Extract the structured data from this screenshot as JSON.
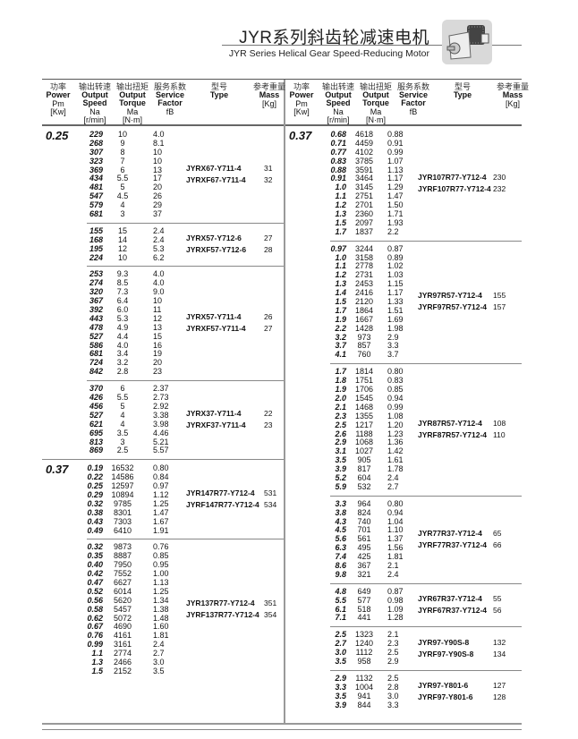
{
  "header": {
    "title": "JYR系列斜齿轮减速电机",
    "subtitle": "JYR Series Helical Gear Speed-Reducing Motor",
    "image": "gear-motor-photo"
  },
  "columns": [
    {
      "zh": "功率",
      "en1": "Power",
      "en2": "",
      "sym": "Pm",
      "unit": "[Kw]"
    },
    {
      "zh": "输出转速",
      "en1": "Output",
      "en2": "Speed",
      "sym": "Na",
      "unit": "[r/min]"
    },
    {
      "zh": "输出扭矩",
      "en1": "Output",
      "en2": "Torque",
      "sym": "Ma",
      "unit": "[N·m]"
    },
    {
      "zh": "服务系数",
      "en1": "Service",
      "en2": "Factor",
      "sym": "fB",
      "unit": ""
    },
    {
      "zh": "型号",
      "en1": "",
      "en2": "Type",
      "sym": "",
      "unit": ""
    },
    {
      "zh": "参考重量",
      "en1": "",
      "en2": "Mass",
      "sym": "",
      "unit": "[Kg]"
    }
  ],
  "left": [
    {
      "power": "0.25",
      "rows": [
        [
          "229",
          "10",
          "4.0"
        ],
        [
          "268",
          "9",
          "8.1"
        ],
        [
          "307",
          "8",
          "10"
        ],
        [
          "323",
          "7",
          "10"
        ],
        [
          "369",
          "6",
          "13"
        ],
        [
          "434",
          "5.5",
          "17"
        ],
        [
          "481",
          "5",
          "20"
        ],
        [
          "547",
          "4.5",
          "26"
        ],
        [
          "579",
          "4",
          "29"
        ],
        [
          "681",
          "3",
          "37"
        ]
      ],
      "types": [
        "JYRX67-Y711-4",
        "JYRXF67-Y711-4"
      ],
      "masses": [
        "31",
        "32"
      ]
    },
    {
      "power": "",
      "rows": [
        [
          "155",
          "15",
          "2.4"
        ],
        [
          "168",
          "14",
          "2.4"
        ],
        [
          "195",
          "12",
          "5.3"
        ],
        [
          "224",
          "10",
          "6.2"
        ]
      ],
      "types": [
        "JYRX57-Y712-6",
        "JYRXF57-Y712-6"
      ],
      "masses": [
        "27",
        "28"
      ]
    },
    {
      "power": "",
      "rows": [
        [
          "253",
          "9.3",
          "4.0"
        ],
        [
          "274",
          "8.5",
          "4.0"
        ],
        [
          "320",
          "7.3",
          "9.0"
        ],
        [
          "367",
          "6.4",
          "10"
        ],
        [
          "392",
          "6.0",
          "11"
        ],
        [
          "443",
          "5.3",
          "12"
        ],
        [
          "478",
          "4.9",
          "13"
        ],
        [
          "527",
          "4.4",
          "15"
        ],
        [
          "586",
          "4.0",
          "16"
        ],
        [
          "681",
          "3.4",
          "19"
        ],
        [
          "724",
          "3.2",
          "20"
        ],
        [
          "842",
          "2.8",
          "23"
        ]
      ],
      "types": [
        "JYRX57-Y711-4",
        "JYRXF57-Y711-4"
      ],
      "masses": [
        "26",
        "27"
      ]
    },
    {
      "power": "",
      "rows": [
        [
          "370",
          "6",
          "2.37"
        ],
        [
          "426",
          "5.5",
          "2.73"
        ],
        [
          "456",
          "5",
          "2.92"
        ],
        [
          "527",
          "4",
          "3.38"
        ],
        [
          "621",
          "4",
          "3.98"
        ],
        [
          "695",
          "3.5",
          "4.46"
        ],
        [
          "813",
          "3",
          "5.21"
        ],
        [
          "869",
          "2.5",
          "5.57"
        ]
      ],
      "types": [
        "JYRX37-Y711-4",
        "JYRXF37-Y711-4"
      ],
      "masses": [
        "22",
        "23"
      ]
    },
    {
      "power": "0.37",
      "rows": [
        [
          "0.19",
          "16532",
          "0.80"
        ],
        [
          "0.22",
          "14586",
          "0.84"
        ],
        [
          "0.25",
          "12597",
          "0.97"
        ],
        [
          "0.29",
          "10894",
          "1.12"
        ],
        [
          "0.32",
          "9785",
          "1.25"
        ],
        [
          "0.38",
          "8301",
          "1.47"
        ],
        [
          "0.43",
          "7303",
          "1.67"
        ],
        [
          "0.49",
          "6410",
          "1.91"
        ]
      ],
      "types": [
        "JYR147R77-Y712-4",
        "JYRF147R77-Y712-4"
      ],
      "masses": [
        "531",
        "534"
      ]
    },
    {
      "power": "",
      "rows": [
        [
          "0.32",
          "9873",
          "0.76"
        ],
        [
          "0.35",
          "8887",
          "0.85"
        ],
        [
          "0.40",
          "7950",
          "0.95"
        ],
        [
          "0.42",
          "7552",
          "1.00"
        ],
        [
          "0.47",
          "6627",
          "1.13"
        ],
        [
          "0.52",
          "6014",
          "1.25"
        ],
        [
          "0.56",
          "5620",
          "1.34"
        ],
        [
          "0.58",
          "5457",
          "1.38"
        ],
        [
          "0.62",
          "5072",
          "1.48"
        ],
        [
          "0.67",
          "4690",
          "1.60"
        ],
        [
          "0.76",
          "4161",
          "1.81"
        ],
        [
          "0.99",
          "3161",
          "2.4"
        ],
        [
          "1.1",
          "2774",
          "2.7"
        ],
        [
          "1.3",
          "2466",
          "3.0"
        ],
        [
          "1.5",
          "2152",
          "3.5"
        ]
      ],
      "types": [
        "JYR137R77-Y712-4",
        "JYRF137R77-Y712-4"
      ],
      "masses": [
        "351",
        "354"
      ]
    }
  ],
  "right": [
    {
      "power": "0.37",
      "rows": [
        [
          "0.68",
          "4618",
          "0.88"
        ],
        [
          "0.71",
          "4459",
          "0.91"
        ],
        [
          "0.77",
          "4102",
          "0.99"
        ],
        [
          "0.83",
          "3785",
          "1.07"
        ],
        [
          "0.88",
          "3591",
          "1.13"
        ],
        [
          "0.91",
          "3464",
          "1.17"
        ],
        [
          "1.0",
          "3145",
          "1.29"
        ],
        [
          "1.1",
          "2751",
          "1.47"
        ],
        [
          "1.2",
          "2701",
          "1.50"
        ],
        [
          "1.3",
          "2360",
          "1.71"
        ],
        [
          "1.5",
          "2097",
          "1.93"
        ],
        [
          "1.7",
          "1837",
          "2.2"
        ]
      ],
      "types": [
        "JYR107R77-Y712-4",
        "JYRF107R77-Y712-4"
      ],
      "masses": [
        "230",
        "232"
      ]
    },
    {
      "power": "",
      "rows": [
        [
          "0.97",
          "3244",
          "0.87"
        ],
        [
          "1.0",
          "3158",
          "0.89"
        ],
        [
          "1.1",
          "2778",
          "1.02"
        ],
        [
          "1.2",
          "2731",
          "1.03"
        ],
        [
          "1.3",
          "2453",
          "1.15"
        ],
        [
          "1.4",
          "2416",
          "1.17"
        ],
        [
          "1.5",
          "2120",
          "1.33"
        ],
        [
          "1.7",
          "1864",
          "1.51"
        ],
        [
          "1.9",
          "1667",
          "1.69"
        ],
        [
          "2.2",
          "1428",
          "1.98"
        ],
        [
          "3.2",
          "973",
          "2.9"
        ],
        [
          "3.7",
          "857",
          "3.3"
        ],
        [
          "4.1",
          "760",
          "3.7"
        ]
      ],
      "types": [
        "JYR97R57-Y712-4",
        "JYRF97R57-Y712-4"
      ],
      "masses": [
        "155",
        "157"
      ]
    },
    {
      "power": "",
      "rows": [
        [
          "1.7",
          "1814",
          "0.80"
        ],
        [
          "1.8",
          "1751",
          "0.83"
        ],
        [
          "1.9",
          "1706",
          "0.85"
        ],
        [
          "2.0",
          "1545",
          "0.94"
        ],
        [
          "2.1",
          "1468",
          "0.99"
        ],
        [
          "2.3",
          "1355",
          "1.08"
        ],
        [
          "2.5",
          "1217",
          "1.20"
        ],
        [
          "2.6",
          "1188",
          "1.23"
        ],
        [
          "2.9",
          "1068",
          "1.36"
        ],
        [
          "3.1",
          "1027",
          "1.42"
        ],
        [
          "3.5",
          "905",
          "1.61"
        ],
        [
          "3.9",
          "817",
          "1.78"
        ],
        [
          "5.2",
          "604",
          "2.4"
        ],
        [
          "5.9",
          "532",
          "2.7"
        ]
      ],
      "types": [
        "JYR87R57-Y712-4",
        "JYRF87R57-Y712-4"
      ],
      "masses": [
        "108",
        "110"
      ]
    },
    {
      "power": "",
      "rows": [
        [
          "3.3",
          "964",
          "0.80"
        ],
        [
          "3.8",
          "824",
          "0.94"
        ],
        [
          "4.3",
          "740",
          "1.04"
        ],
        [
          "4.5",
          "701",
          "1.10"
        ],
        [
          "5.6",
          "561",
          "1.37"
        ],
        [
          "6.3",
          "495",
          "1.56"
        ],
        [
          "7.4",
          "425",
          "1.81"
        ],
        [
          "8.6",
          "367",
          "2.1"
        ],
        [
          "9.8",
          "321",
          "2.4"
        ]
      ],
      "types": [
        "JYR77R37-Y712-4",
        "JYRF77R37-Y712-4"
      ],
      "masses": [
        "65",
        "66"
      ]
    },
    {
      "power": "",
      "rows": [
        [
          "4.8",
          "649",
          "0.87"
        ],
        [
          "5.5",
          "577",
          "0.98"
        ],
        [
          "6.1",
          "518",
          "1.09"
        ],
        [
          "7.1",
          "441",
          "1.28"
        ]
      ],
      "types": [
        "JYR67R37-Y712-4",
        "JYRF67R37-Y712-4"
      ],
      "masses": [
        "55",
        "56"
      ]
    },
    {
      "power": "",
      "rows": [
        [
          "2.5",
          "1323",
          "2.1"
        ],
        [
          "2.7",
          "1240",
          "2.3"
        ],
        [
          "3.0",
          "1112",
          "2.5"
        ],
        [
          "3.5",
          "958",
          "2.9"
        ]
      ],
      "types": [
        "JYR97-Y90S-8",
        "JYRF97-Y90S-8"
      ],
      "masses": [
        "132",
        "134"
      ]
    },
    {
      "power": "",
      "rows": [
        [
          "2.9",
          "1132",
          "2.5"
        ],
        [
          "3.3",
          "1004",
          "2.8"
        ],
        [
          "3.5",
          "941",
          "3.0"
        ],
        [
          "3.9",
          "844",
          "3.3"
        ]
      ],
      "types": [
        "JYR97-Y801-6",
        "JYRF97-Y801-6"
      ],
      "masses": [
        "127",
        "128"
      ]
    }
  ]
}
